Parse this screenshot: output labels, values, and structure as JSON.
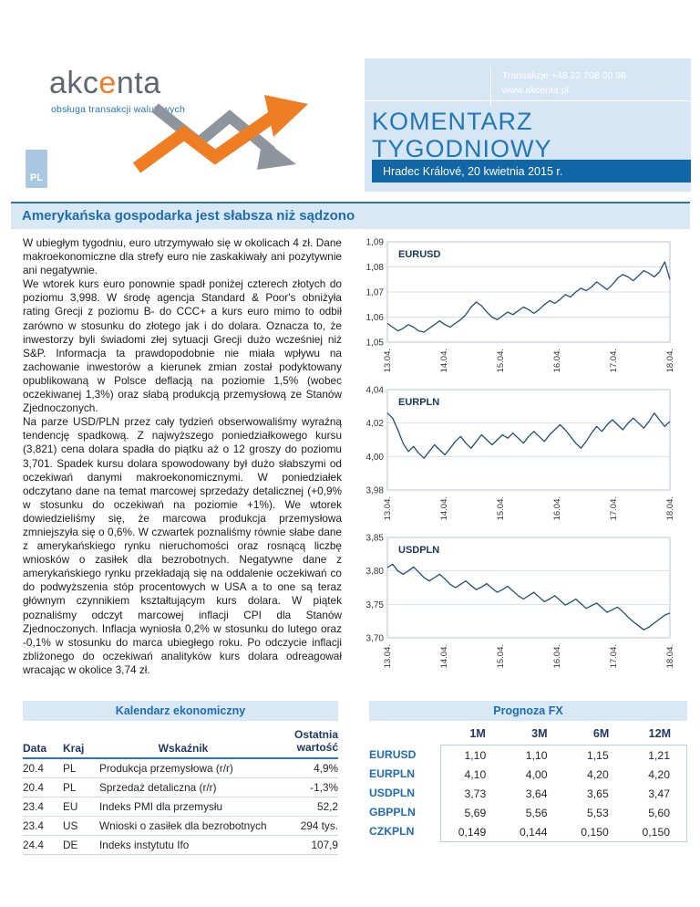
{
  "colors": {
    "brand_blue": "#2276B9",
    "dark_bar_blue": "#1066A7",
    "light_blue_bg": "#D7E6F4",
    "accent_orange": "#EE7D23",
    "chart_line_navy": "#1F4E79",
    "headline_blue": "#1F6CB0"
  },
  "header": {
    "logo_part1": "akc",
    "logo_accent": "e",
    "logo_part2": "nta",
    "tagline": "obsługa transakcji walutowych",
    "contact_phone": "Transakcje +48 22 208 00 98",
    "contact_web": "www.akcenta.pl",
    "doc_title_line1": "KOMENTARZ",
    "doc_title_line2": "TYGODNIOWY",
    "date_bar": "Hradec Králové,  20 kwietnia 2015 r.",
    "lang_badge": "PL"
  },
  "headline": "Amerykańska gospodarka jest słabsza niż sądzono",
  "article": {
    "paragraphs": [
      "W ubiegłym tygodniu, euro utrzymywało się w okolicach 4 zł. Dane makroekonomiczne dla strefy euro nie zaskakiwały ani pozytywnie ani negatywnie.",
      "We wtorek kurs euro ponownie spadł poniżej czterech złotych do poziomu 3,998. W środę agencja Standard & Poor's obniżyła rating Grecji z poziomu B- do CCC+ a kurs euro mimo to odbił zarówno w stosunku do złotego jak i do dolara. Oznacza to, że inwestorzy byli świadomi złej sytuacji Grecji dużo wcześniej niż S&P. Informacja ta prawdopodobnie nie miała wpływu na zachowanie inwestorów a kierunek zmian został podyktowany opublikowaną w Polsce deflacją na poziomie 1,5% (wobec oczekiwanej 1,3%) oraz słabą produkcją przemysłową ze Stanów Zjednoczonych.",
      "Na parze USD/PLN przez cały tydzień obserwowaliśmy wyraźną tendencję spadkową. Z najwyższego poniedziałkowego kursu (3,821) cena dolara spadła do piątku aż o 12 groszy do poziomu 3,701. Spadek kursu dolara spowodowany był dużo słabszymi od oczekiwań danymi makroekonomicznymi. W poniedziałek odczytano dane na temat marcowej sprzedaży detalicznej (+0,9% w stosunku do oczekiwań na poziomie +1%). We wtorek dowiedzieliśmy się, że marcowa produkcja przemysłowa zmniejszyła się o 0,6%. W czwartek poznaliśmy równie słabe dane z amerykańskiego rynku nieruchomości oraz rosnącą liczbę wniosków o zasiłek dla bezrobotnych. Negatywne dane z amerykańskiego rynku przekładają się na oddalenie oczekiwań co do podwyższenia stóp procentowych w USA a to one są teraz głównym czynnikiem kształtującym kurs dolara. W piątek poznaliśmy odczyt marcowej inflacji CPI dla Stanów Zjednoczonych. Inflacja wyniosła 0,2% w stosunku do lutego oraz -0,1% w stosunku do marca ubiegłego roku. Po odczycie inflacji zbliżonego do oczekiwań analityków kurs dolara odreagował wracając w okolice 3,74 zł."
    ]
  },
  "chart_data": [
    {
      "type": "line",
      "title": "EURUSD",
      "ylim": [
        1.05,
        1.09
      ],
      "yticks": [
        1.09,
        1.08,
        1.07,
        1.06,
        1.05
      ],
      "ytick_labels": [
        "1,09",
        "1,08",
        "1,07",
        "1,06",
        "1,05"
      ],
      "xtick_labels": [
        "13.04.",
        "14.04.",
        "15.04.",
        "16.04.",
        "17.04.",
        "18.04."
      ],
      "values": [
        1.0575,
        1.056,
        1.0545,
        1.0555,
        1.057,
        1.056,
        1.0545,
        1.054,
        1.0555,
        1.057,
        1.0585,
        1.057,
        1.056,
        1.0575,
        1.059,
        1.061,
        1.064,
        1.066,
        1.0645,
        1.062,
        1.06,
        1.059,
        1.0605,
        1.062,
        1.061,
        1.0625,
        1.064,
        1.063,
        1.0615,
        1.063,
        1.065,
        1.0665,
        1.0655,
        1.067,
        1.069,
        1.068,
        1.07,
        1.0715,
        1.0705,
        1.072,
        1.074,
        1.0725,
        1.071,
        1.073,
        1.0755,
        1.077,
        1.076,
        1.0745,
        1.0765,
        1.0785,
        1.0775,
        1.076,
        1.078,
        1.082,
        1.075
      ]
    },
    {
      "type": "line",
      "title": "EURPLN",
      "ylim": [
        3.98,
        4.04
      ],
      "yticks": [
        4.04,
        4.02,
        4.0,
        3.98
      ],
      "ytick_labels": [
        "4,04",
        "4,02",
        "4,00",
        "3,98"
      ],
      "xtick_labels": [
        "13.04.",
        "14.04.",
        "15.04.",
        "16.04.",
        "17.04.",
        "18.04."
      ],
      "values": [
        4.026,
        4.023,
        4.016,
        4.008,
        4.003,
        4.006,
        4.002,
        3.999,
        4.003,
        4.007,
        4.004,
        4.001,
        4.005,
        4.009,
        4.012,
        4.008,
        4.005,
        4.009,
        4.013,
        4.01,
        4.007,
        4.01,
        4.013,
        4.011,
        4.014,
        4.011,
        4.008,
        4.012,
        4.015,
        4.012,
        4.009,
        4.013,
        4.016,
        4.019,
        4.016,
        4.012,
        4.008,
        4.005,
        4.009,
        4.014,
        4.018,
        4.015,
        4.019,
        4.022,
        4.019,
        4.016,
        4.02,
        4.023,
        4.02,
        4.017,
        4.021,
        4.026,
        4.022,
        4.018,
        4.021
      ]
    },
    {
      "type": "line",
      "title": "USDPLN",
      "ylim": [
        3.7,
        3.85
      ],
      "yticks": [
        3.85,
        3.8,
        3.75,
        3.7
      ],
      "ytick_labels": [
        "3,85",
        "3,80",
        "3,75",
        "3,70"
      ],
      "xtick_labels": [
        "13.04.",
        "14.04.",
        "15.04.",
        "16.04.",
        "17.04.",
        "18.04."
      ],
      "values": [
        3.805,
        3.81,
        3.8,
        3.795,
        3.8,
        3.806,
        3.798,
        3.79,
        3.785,
        3.79,
        3.795,
        3.788,
        3.78,
        3.775,
        3.78,
        3.785,
        3.778,
        3.772,
        3.776,
        3.781,
        3.774,
        3.768,
        3.772,
        3.777,
        3.77,
        3.763,
        3.758,
        3.763,
        3.768,
        3.761,
        3.754,
        3.758,
        3.763,
        3.756,
        3.749,
        3.753,
        3.758,
        3.751,
        3.744,
        3.748,
        3.752,
        3.745,
        3.738,
        3.742,
        3.746,
        3.739,
        3.731,
        3.724,
        3.718,
        3.712,
        3.716,
        3.722,
        3.728,
        3.734,
        3.737
      ]
    }
  ],
  "calendar": {
    "title": "Kalendarz ekonomiczny",
    "col_date": "Data",
    "col_country": "Kraj",
    "col_indicator": "Wskaźnik",
    "col_value": "Ostatnia wartość",
    "rows": [
      {
        "date": "20.4",
        "country": "PL",
        "indicator": "Produkcja przemysłowa (r/r)",
        "value": "4,9%"
      },
      {
        "date": "20.4",
        "country": "PL",
        "indicator": "Sprzedaż detaliczna (r/r)",
        "value": "-1,3%"
      },
      {
        "date": "23.4",
        "country": "EU",
        "indicator": "Indeks PMI dla przemysłu",
        "value": "52,2"
      },
      {
        "date": "23.4",
        "country": "US",
        "indicator": "Wnioski o zasiłek dla bezrobotnych",
        "value": "294 tys."
      },
      {
        "date": "24.4",
        "country": "DE",
        "indicator": "Indeks instytutu Ifo",
        "value": "107,9"
      }
    ]
  },
  "forecast": {
    "title": "Prognoza FX",
    "columns": [
      "1M",
      "3M",
      "6M",
      "12M"
    ],
    "rows": [
      {
        "pair": "EURUSD",
        "values": [
          "1,10",
          "1,10",
          "1,15",
          "1,21"
        ]
      },
      {
        "pair": "EURPLN",
        "values": [
          "4,10",
          "4,00",
          "4,20",
          "4,20"
        ]
      },
      {
        "pair": "USDPLN",
        "values": [
          "3,73",
          "3,64",
          "3,65",
          "3,47"
        ]
      },
      {
        "pair": "GBPPLN",
        "values": [
          "5,69",
          "5,56",
          "5,53",
          "5,60"
        ]
      },
      {
        "pair": "CZKPLN",
        "values": [
          "0,149",
          "0,144",
          "0,150",
          "0,150"
        ]
      }
    ]
  }
}
